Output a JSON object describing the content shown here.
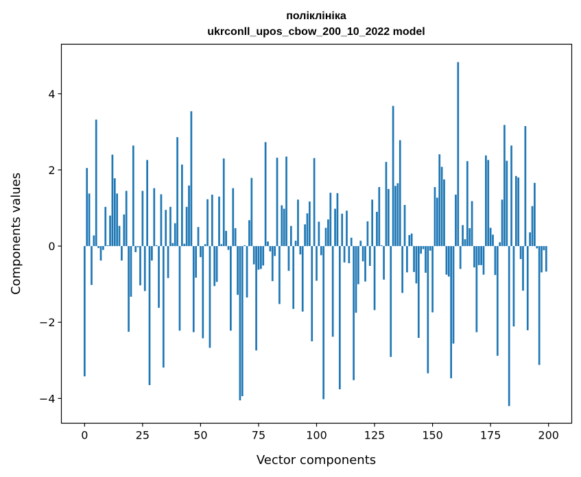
{
  "chart_data": {
    "type": "bar",
    "title": "поліклініка",
    "subtitle": "ukrconll_upos_cbow_200_10_2022 model",
    "xlabel": "Vector components",
    "ylabel": "Components values",
    "xlim": [
      -10,
      210
    ],
    "ylim": [
      -4.65,
      5.3
    ],
    "xticks": [
      0,
      25,
      50,
      75,
      100,
      125,
      150,
      175,
      200
    ],
    "yticks": [
      -4,
      -2,
      0,
      2,
      4
    ],
    "ytick_labels": [
      "−4",
      "−2",
      "0",
      "2",
      "4"
    ],
    "bar_color": "#1f77b4",
    "grid": false,
    "x": [
      0,
      1,
      2,
      3,
      4,
      5,
      6,
      7,
      8,
      9,
      10,
      11,
      12,
      13,
      14,
      15,
      16,
      17,
      18,
      19,
      20,
      21,
      22,
      23,
      24,
      25,
      26,
      27,
      28,
      29,
      30,
      31,
      32,
      33,
      34,
      35,
      36,
      37,
      38,
      39,
      40,
      41,
      42,
      43,
      44,
      45,
      46,
      47,
      48,
      49,
      50,
      51,
      52,
      53,
      54,
      55,
      56,
      57,
      58,
      59,
      60,
      61,
      62,
      63,
      64,
      65,
      66,
      67,
      68,
      69,
      70,
      71,
      72,
      73,
      74,
      75,
      76,
      77,
      78,
      79,
      80,
      81,
      82,
      83,
      84,
      85,
      86,
      87,
      88,
      89,
      90,
      91,
      92,
      93,
      94,
      95,
      96,
      97,
      98,
      99,
      100,
      101,
      102,
      103,
      104,
      105,
      106,
      107,
      108,
      109,
      110,
      111,
      112,
      113,
      114,
      115,
      116,
      117,
      118,
      119,
      120,
      121,
      122,
      123,
      124,
      125,
      126,
      127,
      128,
      129,
      130,
      131,
      132,
      133,
      134,
      135,
      136,
      137,
      138,
      139,
      140,
      141,
      142,
      143,
      144,
      145,
      146,
      147,
      148,
      149,
      150,
      151,
      152,
      153,
      154,
      155,
      156,
      157,
      158,
      159,
      160,
      161,
      162,
      163,
      164,
      165,
      166,
      167,
      168,
      169,
      170,
      171,
      172,
      173,
      174,
      175,
      176,
      177,
      178,
      179,
      180,
      181,
      182,
      183,
      184,
      185,
      186,
      187,
      188,
      189,
      190,
      191,
      192,
      193,
      194,
      195,
      196,
      197,
      198,
      199
    ],
    "values": [
      -3.42,
      2.05,
      1.38,
      -1.02,
      0.28,
      3.32,
      -0.05,
      -0.38,
      -0.1,
      1.03,
      0.02,
      0.8,
      2.4,
      1.78,
      1.38,
      0.53,
      -0.38,
      0.83,
      1.45,
      -2.25,
      -1.33,
      2.64,
      -0.16,
      -0.03,
      -1.03,
      1.45,
      -1.18,
      2.26,
      -3.65,
      -0.38,
      1.52,
      0.02,
      -1.62,
      1.36,
      -3.19,
      0.95,
      -0.84,
      1.03,
      0.08,
      0.6,
      2.86,
      -2.22,
      2.14,
      0.06,
      1.03,
      1.59,
      3.54,
      -2.26,
      -0.83,
      0.5,
      -0.29,
      -2.42,
      0.05,
      1.23,
      -2.67,
      1.35,
      -1.05,
      -0.94,
      1.3,
      0.05,
      2.3,
      0.4,
      -0.1,
      -2.22,
      1.52,
      0.47,
      -1.28,
      -4.05,
      -3.94,
      0.02,
      -1.35,
      0.68,
      1.79,
      -0.48,
      -2.74,
      -0.62,
      -0.6,
      -0.51,
      2.73,
      0.12,
      -0.14,
      -0.92,
      -0.26,
      2.32,
      -1.52,
      1.07,
      0.98,
      2.35,
      -0.65,
      0.53,
      -1.65,
      0.14,
      1.22,
      -0.22,
      -1.72,
      0.57,
      0.86,
      1.17,
      -2.5,
      2.31,
      -0.91,
      0.64,
      -0.24,
      -4.02,
      0.48,
      0.7,
      1.4,
      -2.38,
      0.98,
      1.39,
      -3.76,
      0.85,
      -0.43,
      0.93,
      -0.45,
      0.22,
      -3.52,
      -1.75,
      -1.0,
      0.14,
      -0.4,
      -0.93,
      0.65,
      -0.52,
      1.22,
      -1.68,
      0.9,
      1.55,
      0.02,
      -0.88,
      2.21,
      1.5,
      -2.91,
      3.68,
      1.58,
      1.65,
      2.78,
      -1.23,
      1.08,
      -0.69,
      0.29,
      0.33,
      -0.68,
      -0.98,
      -2.41,
      -0.2,
      -0.08,
      -0.7,
      -3.34,
      -0.12,
      -1.74,
      1.55,
      1.27,
      2.41,
      2.08,
      1.75,
      -0.75,
      -0.8,
      -3.47,
      -2.56,
      1.35,
      4.83,
      -0.6,
      0.55,
      0.18,
      2.23,
      0.47,
      1.18,
      -0.56,
      -2.26,
      -0.5,
      -0.5,
      -0.75,
      2.38,
      2.26,
      0.48,
      0.3,
      -0.76,
      -2.88,
      0.1,
      1.22,
      3.18,
      2.24,
      -4.2,
      2.64,
      -2.11,
      1.84,
      1.8,
      -0.34,
      -1.17,
      3.15,
      -2.21,
      0.36,
      1.05,
      1.66,
      -0.06,
      -3.12,
      -0.69,
      -0.11,
      -0.67
    ]
  }
}
